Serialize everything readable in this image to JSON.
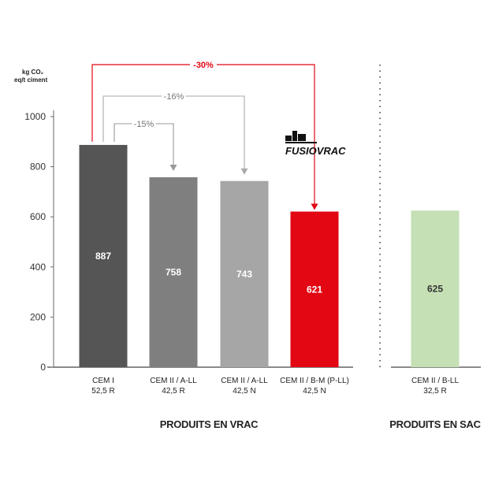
{
  "chart_data": {
    "type": "bar",
    "ylabel_line1": "kg CO₂",
    "ylabel_line2": "eq/t ciment",
    "ylim": [
      0,
      1000
    ],
    "yticks": [
      0,
      200,
      400,
      600,
      800,
      1000
    ],
    "categories": [
      {
        "line1": "CEM I",
        "line2": "52,5 R"
      },
      {
        "line1": "CEM II / A-LL",
        "line2": "42,5 R"
      },
      {
        "line1": "CEM II / A-LL",
        "line2": "42,5 N"
      },
      {
        "line1": "CEM II / B-M (P-LL)",
        "line2": "42,5 N"
      },
      {
        "line1": "CEM II / B-LL",
        "line2": "32,5 R"
      }
    ],
    "values": [
      887,
      758,
      743,
      621,
      625
    ],
    "value_labels": [
      "887",
      "758",
      "743",
      "621",
      "625"
    ],
    "colors": [
      "#555555",
      "#7f7f7f",
      "#a6a6a6",
      "#e30613",
      "#c5e0b4"
    ],
    "groups": [
      {
        "label": "PRODUITS EN VRAC",
        "bars": [
          0,
          1,
          2,
          3
        ]
      },
      {
        "label": "PRODUITS EN SAC",
        "bars": [
          4
        ]
      }
    ],
    "annotations": [
      {
        "label": "-30%",
        "from": 0,
        "to": 3,
        "color": "#e30613"
      },
      {
        "label": "-16%",
        "from": 0,
        "to": 2,
        "color": "#aaaaaa"
      },
      {
        "label": "-15%",
        "from": 0,
        "to": 1,
        "color": "#999999"
      }
    ],
    "logo_text": "FUSIOVRAC"
  }
}
